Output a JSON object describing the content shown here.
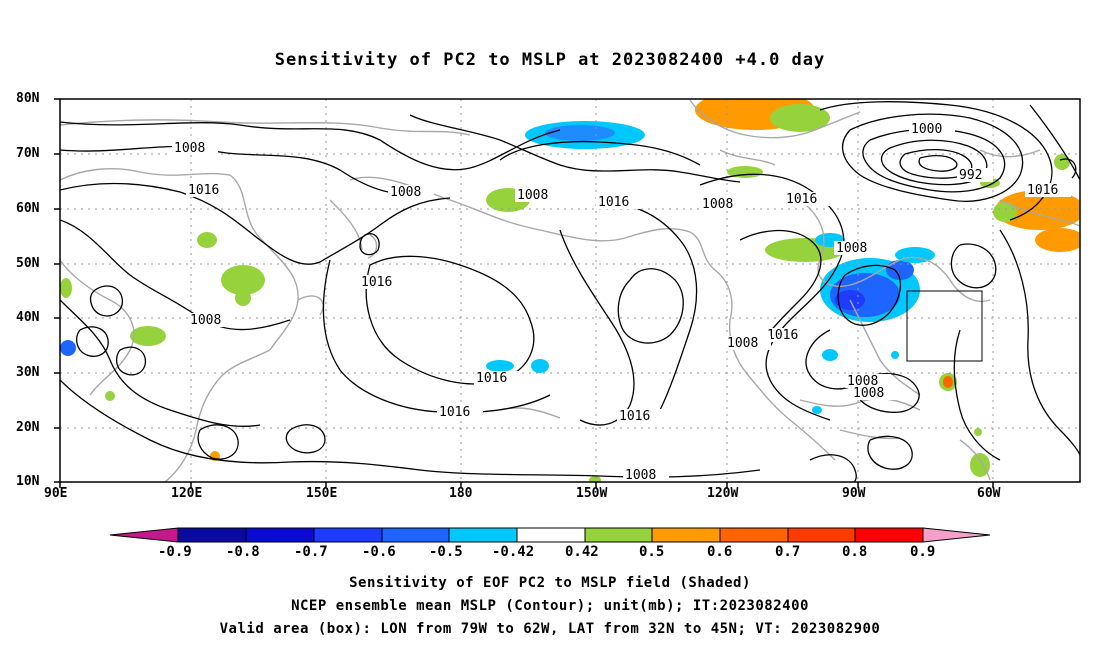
{
  "title": "Sensitivity of PC2 to MSLP at 2023082400 +4.0 day",
  "lat_labels": [
    "80N",
    "70N",
    "60N",
    "50N",
    "40N",
    "30N",
    "20N",
    "10N"
  ],
  "lon_labels": [
    "90E",
    "120E",
    "150E",
    "180",
    "150W",
    "120W",
    "90W",
    "60W"
  ],
  "colorbar": {
    "labels": [
      "-0.9",
      "-0.8",
      "-0.7",
      "-0.6",
      "-0.5",
      "-0.42",
      "0.42",
      "0.5",
      "0.6",
      "0.7",
      "0.8",
      "0.9"
    ],
    "colors": [
      "#c4188c",
      "#0a0aa0",
      "#0a0ad2",
      "#1e3cff",
      "#1e64ff",
      "#1e8cff",
      "#00c8ff",
      "#ffffff",
      "#96d23c",
      "#ff9b00",
      "#ff6400",
      "#ff3c00",
      "#ff0000",
      "#f5a0c8"
    ]
  },
  "contour_labels": [
    "1008",
    "1016",
    "1008",
    "1008",
    "1016",
    "1008",
    "1016",
    "1000",
    "992",
    "1016",
    "1016",
    "1008",
    "1016",
    "1008",
    "1016",
    "1016",
    "1008",
    "1008",
    "1008",
    "1016",
    "1008"
  ],
  "valid_box": {
    "lon_from": "79W",
    "lon_to": "62W",
    "lat_from": "32N",
    "lat_to": "45N"
  },
  "captions": [
    "Sensitivity of EOF PC2 to MSLP field (Shaded)",
    "NCEP ensemble mean MSLP (Contour); unit(mb); IT:2023082400",
    "Valid area (box): LON from 79W to 62W, LAT from 32N to 45N; VT: 2023082900"
  ]
}
